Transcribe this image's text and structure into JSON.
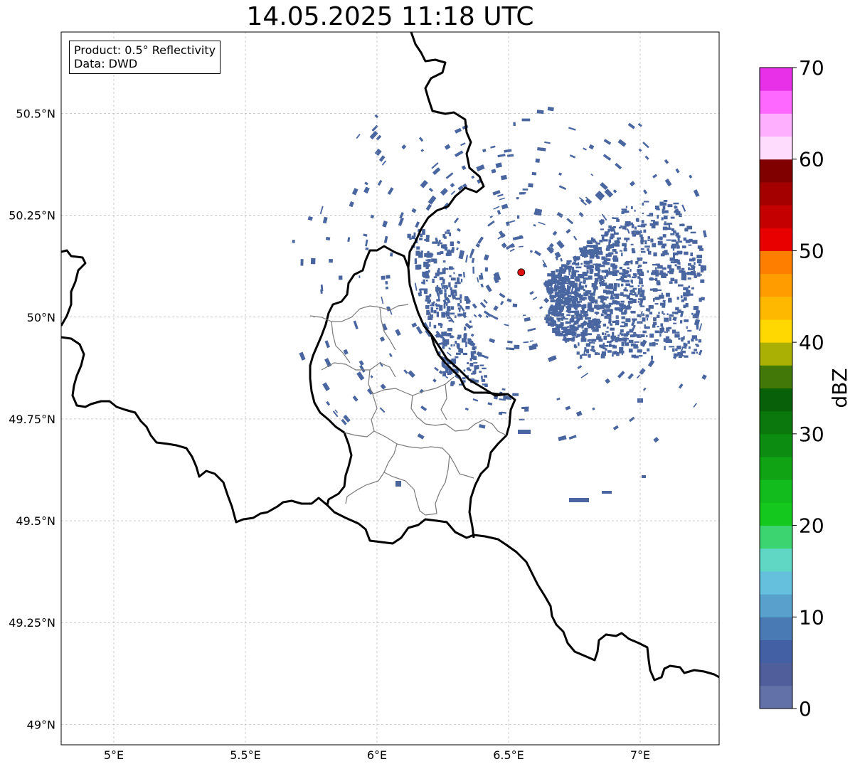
{
  "title": "14.05.2025 11:18 UTC",
  "info_box": {
    "product": "Product: 0.5° Reflectivity",
    "data": "Data: DWD"
  },
  "map": {
    "lon_range": [
      4.8,
      7.3
    ],
    "lat_range": [
      48.95,
      50.7
    ],
    "x_ticks": [
      {
        "value": 5.0,
        "label": "5°E"
      },
      {
        "value": 5.5,
        "label": "5.5°E"
      },
      {
        "value": 6.0,
        "label": "6°E"
      },
      {
        "value": 6.5,
        "label": "6.5°E"
      },
      {
        "value": 7.0,
        "label": "7°E"
      }
    ],
    "y_ticks": [
      {
        "value": 50.5,
        "label": "50.5°N"
      },
      {
        "value": 50.25,
        "label": "50.25°N"
      },
      {
        "value": 50.0,
        "label": "50°N"
      },
      {
        "value": 49.75,
        "label": "49.75°N"
      },
      {
        "value": 49.5,
        "label": "49.5°N"
      },
      {
        "value": 49.25,
        "label": "49.25°N"
      },
      {
        "value": 49.0,
        "label": "49°N"
      }
    ],
    "grid": true,
    "radar_site": {
      "lon": 6.548,
      "lat": 50.11
    },
    "echo_color": "#4a66a0"
  },
  "colorbar": {
    "label": "dBZ",
    "min": 0,
    "max": 70,
    "ticks": [
      0,
      10,
      20,
      30,
      40,
      50,
      60,
      70
    ],
    "colors": [
      "#6272a8",
      "#505f9c",
      "#4360a4",
      "#4a7ab4",
      "#5aa0cc",
      "#64c0dc",
      "#60d6c4",
      "#3cd470",
      "#14c81e",
      "#12bc1c",
      "#10a414",
      "#0c8c10",
      "#0a780c",
      "#086008",
      "#427808",
      "#aab004",
      "#fed800",
      "#feb800",
      "#fe9c00",
      "#fe7e00",
      "#e80000",
      "#c40000",
      "#a40000",
      "#800000",
      "#fedcfe",
      "#feb0fe",
      "#fe68fe",
      "#e830e8"
    ]
  }
}
